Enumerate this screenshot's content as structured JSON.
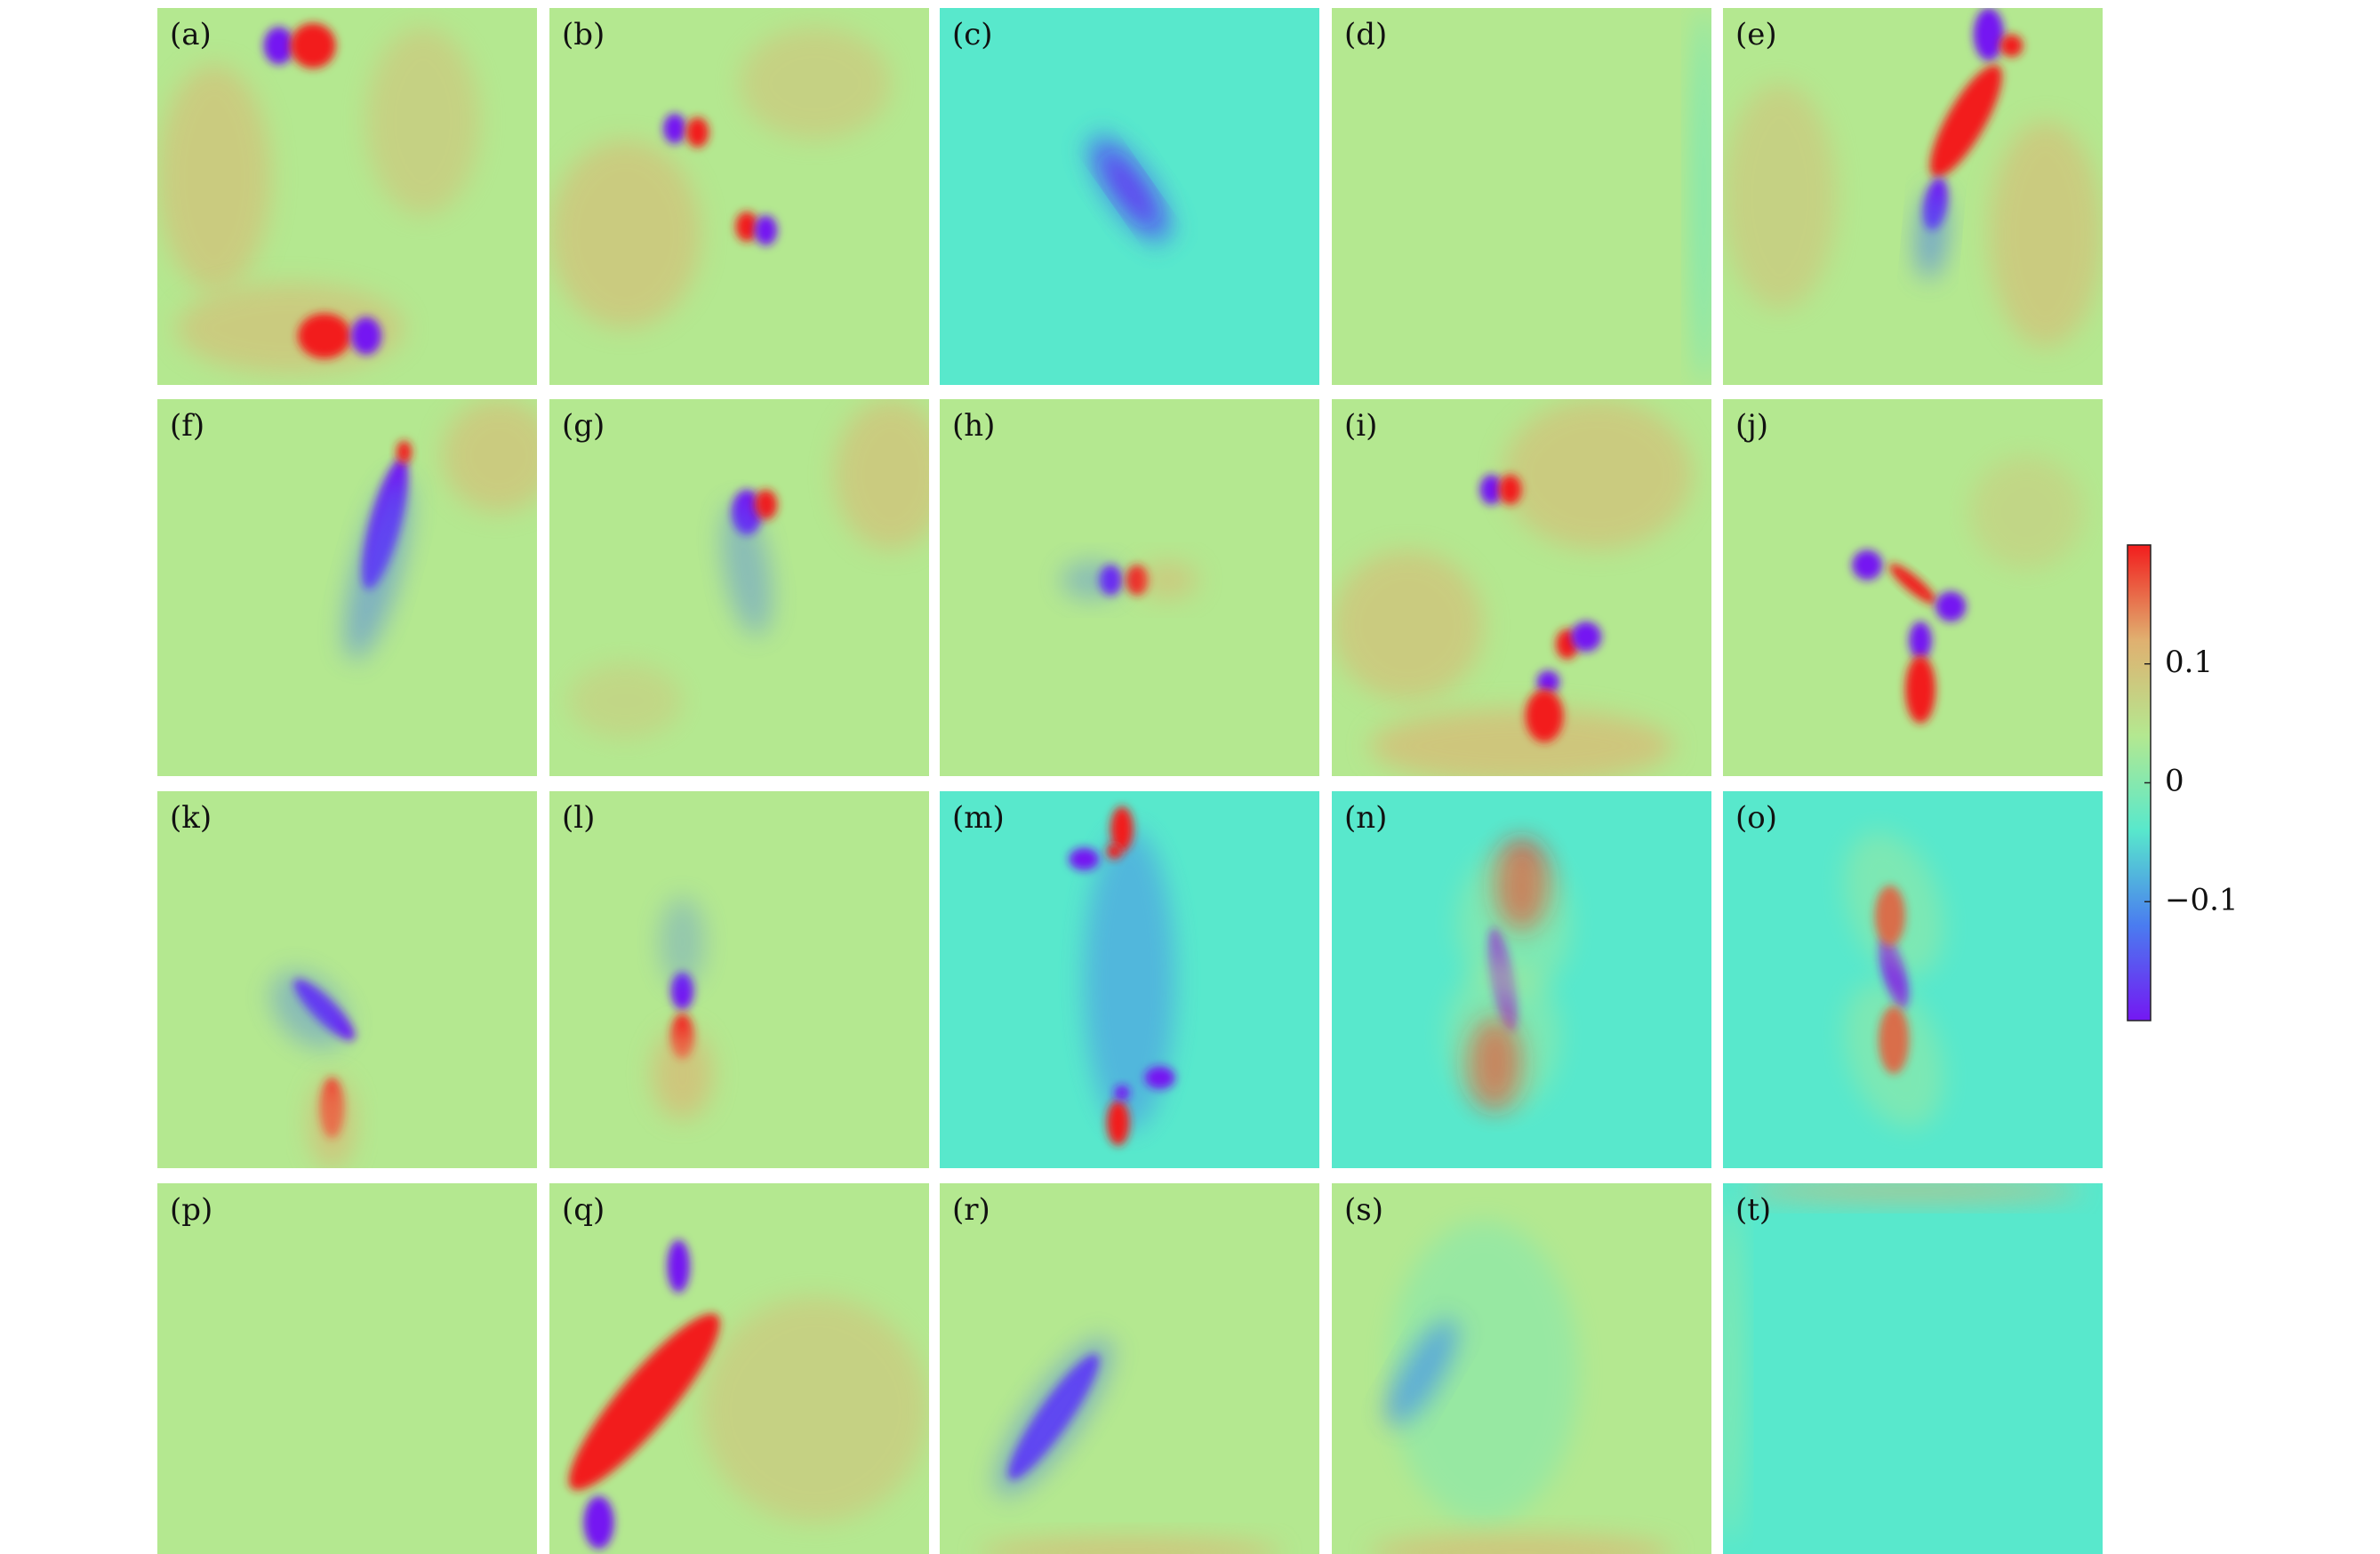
{
  "chart_data": {
    "type": "heatmap-grid",
    "panel_labels": [
      "(a)",
      "(b)",
      "(c)",
      "(d)",
      "(e)",
      "(f)",
      "(g)",
      "(h)",
      "(i)",
      "(j)",
      "(k)",
      "(l)",
      "(m)",
      "(n)",
      "(o)",
      "(p)",
      "(q)",
      "(r)",
      "(s)",
      "(t)"
    ],
    "clim": [
      -0.2,
      0.2
    ],
    "cticks": [
      0.1,
      0,
      {
        "value": -0.1,
        "label": "−0.1"
      }
    ],
    "colormap": [
      "#7418f2",
      "#4a7cf0",
      "#58e8cc",
      "#b4e890",
      "#e0b070",
      "#f21d1d"
    ]
  }
}
